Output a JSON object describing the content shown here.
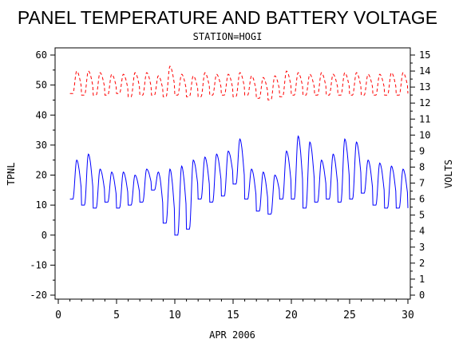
{
  "chart_data": {
    "type": "line",
    "title": "PANEL TEMPERATURE AND BATTERY VOLTAGE",
    "subtitle": "STATION=HOGI",
    "xlabel": "APR 2006",
    "ylabel_left": "TPNL",
    "ylabel_right": "VOLTS",
    "xlim": [
      0,
      30
    ],
    "ylim_left": [
      -20,
      60
    ],
    "ylim_right": [
      0,
      15
    ],
    "x_ticks": [
      "0",
      "5",
      "10",
      "15",
      "20",
      "25",
      "30"
    ],
    "y_left_ticks": [
      "-20",
      "-10",
      "0",
      "10",
      "20",
      "30",
      "40",
      "50",
      "60"
    ],
    "y_right_ticks": [
      "0",
      "1",
      "2",
      "3",
      "4",
      "5",
      "6",
      "7",
      "8",
      "9",
      "10",
      "11",
      "12",
      "13",
      "14",
      "15"
    ],
    "series": [
      {
        "axis": "left",
        "color": "#0000ff",
        "style": "solid",
        "daily": [
          [
            1,
            12,
            25
          ],
          [
            2,
            10,
            27
          ],
          [
            3,
            9,
            22
          ],
          [
            4,
            11,
            21
          ],
          [
            5,
            9,
            21
          ],
          [
            6,
            10,
            20
          ],
          [
            7,
            11,
            22
          ],
          [
            8,
            15,
            21
          ],
          [
            9,
            4,
            22
          ],
          [
            10,
            0,
            23
          ],
          [
            11,
            2,
            25
          ],
          [
            12,
            12,
            26
          ],
          [
            13,
            11,
            27
          ],
          [
            14,
            13,
            28
          ],
          [
            15,
            17,
            32
          ],
          [
            16,
            12,
            22
          ],
          [
            17,
            8,
            21
          ],
          [
            18,
            7,
            20
          ],
          [
            19,
            12,
            28
          ],
          [
            20,
            12,
            33
          ],
          [
            21,
            9,
            31
          ],
          [
            22,
            11,
            25
          ],
          [
            23,
            12,
            27
          ],
          [
            24,
            11,
            32
          ],
          [
            25,
            12,
            31
          ],
          [
            26,
            14,
            25
          ],
          [
            27,
            10,
            24
          ],
          [
            28,
            9,
            23
          ],
          [
            29,
            9,
            22
          ],
          [
            30,
            9,
            15
          ]
        ]
      },
      {
        "axis": "right",
        "color": "#ff0000",
        "style": "dashed",
        "daily": [
          [
            1,
            12.6,
            14.0
          ],
          [
            2,
            12.5,
            14.0
          ],
          [
            3,
            12.5,
            13.9
          ],
          [
            4,
            12.5,
            13.8
          ],
          [
            5,
            12.6,
            13.8
          ],
          [
            6,
            12.4,
            13.9
          ],
          [
            7,
            12.5,
            13.9
          ],
          [
            8,
            12.5,
            13.7
          ],
          [
            9,
            12.4,
            14.3
          ],
          [
            10,
            12.5,
            13.8
          ],
          [
            11,
            12.4,
            13.7
          ],
          [
            12,
            12.4,
            13.9
          ],
          [
            13,
            12.5,
            13.8
          ],
          [
            14,
            12.5,
            13.8
          ],
          [
            15,
            12.4,
            13.9
          ],
          [
            16,
            12.5,
            13.7
          ],
          [
            17,
            12.3,
            13.6
          ],
          [
            18,
            12.2,
            13.7
          ],
          [
            19,
            12.4,
            14.0
          ],
          [
            20,
            12.5,
            13.9
          ],
          [
            21,
            12.5,
            13.8
          ],
          [
            22,
            12.5,
            13.9
          ],
          [
            23,
            12.5,
            13.8
          ],
          [
            24,
            12.5,
            13.9
          ],
          [
            25,
            12.5,
            13.9
          ],
          [
            26,
            12.5,
            13.8
          ],
          [
            27,
            12.5,
            13.8
          ],
          [
            28,
            12.5,
            13.9
          ],
          [
            29,
            12.5,
            13.9
          ],
          [
            30,
            12.6,
            13.8
          ]
        ]
      }
    ]
  }
}
